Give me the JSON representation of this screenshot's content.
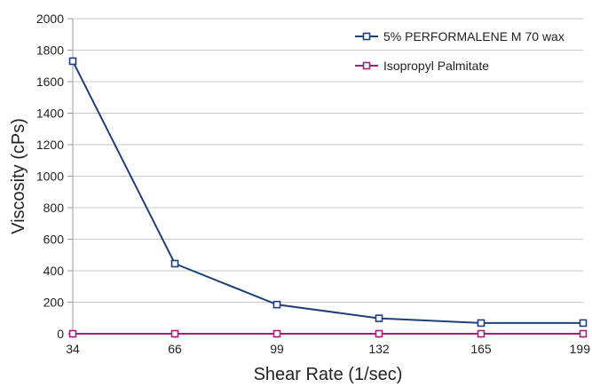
{
  "chart_data": {
    "type": "line",
    "categories": [
      "34",
      "66",
      "99",
      "132",
      "165",
      "199"
    ],
    "xlabel": "Shear Rate (1/sec)",
    "ylabel": "Viscosity (cPs)",
    "ylim": [
      0,
      2000
    ],
    "yticks": [
      "0",
      "200",
      "400",
      "600",
      "800",
      "1000",
      "1200",
      "1400",
      "1600",
      "1800",
      "2000"
    ],
    "grid": "horizontal",
    "legend_position": "top-right",
    "series": [
      {
        "name": "5% PERFORMALENE M 70 wax",
        "color": "#1f3f7a",
        "marker": "square",
        "values": [
          1730,
          445,
          185,
          98,
          68,
          68
        ]
      },
      {
        "name": "Isopropyl Palmitate",
        "color": "#a0207a",
        "marker": "square",
        "values": [
          0,
          0,
          0,
          0,
          0,
          0
        ]
      }
    ]
  }
}
